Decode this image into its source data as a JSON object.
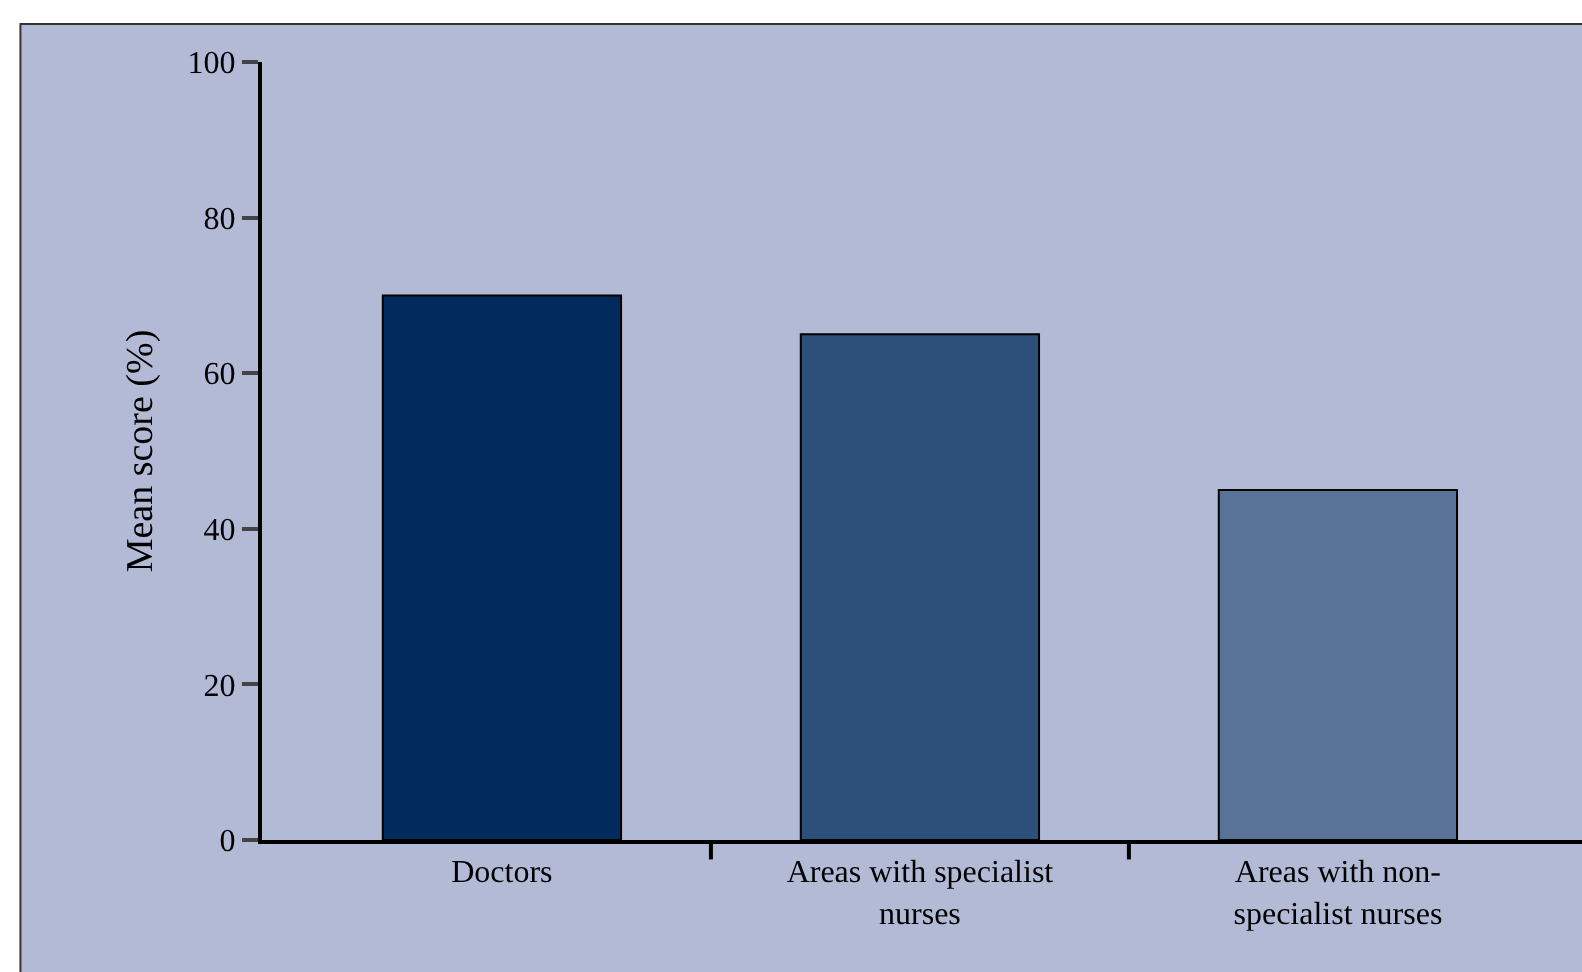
{
  "chart_data": {
    "type": "bar",
    "ylabel": "Mean score (%)",
    "categories": [
      "Doctors",
      "Areas with specialist nurses",
      "Areas with non-specialist nurses"
    ],
    "values": [
      70,
      65,
      45
    ],
    "colors": [
      "#032a5c",
      "#2c5079",
      "#587397"
    ],
    "ylim": [
      0,
      100
    ],
    "yticks": [
      0,
      20,
      40,
      60,
      80,
      100
    ],
    "grid": false
  }
}
